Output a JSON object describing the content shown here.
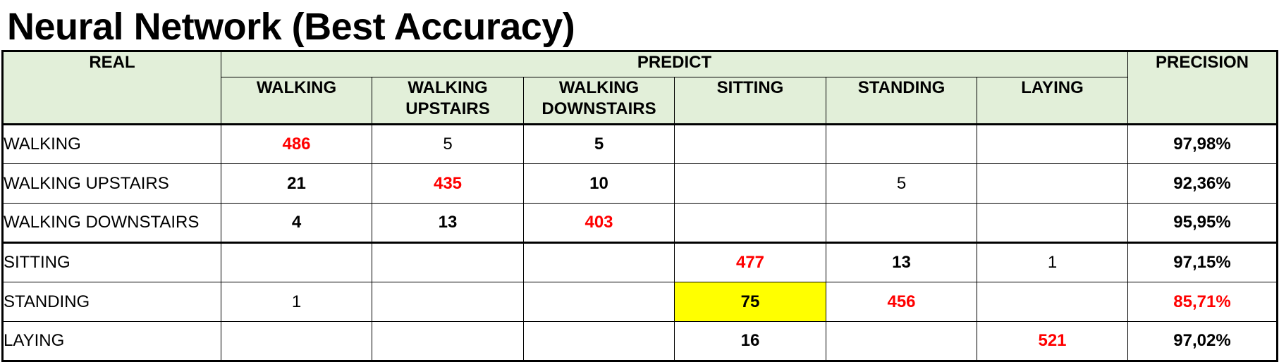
{
  "title": "Neural Network (Best Accuracy)",
  "header": {
    "real": "REAL",
    "predict": "PREDICT",
    "precision": "PRECISION",
    "columns": [
      [
        "WALKING",
        ""
      ],
      [
        "WALKING",
        "UPSTAIRS"
      ],
      [
        "WALKING",
        "DOWNSTAIRS"
      ],
      [
        "SITTING",
        ""
      ],
      [
        "STANDING",
        ""
      ],
      [
        "LAYING",
        ""
      ]
    ]
  },
  "rows": [
    {
      "label": "WALKING",
      "cells": [
        "486",
        "5",
        "5",
        "",
        "",
        ""
      ],
      "precision": "97,98%"
    },
    {
      "label": "WALKING UPSTAIRS",
      "cells": [
        "21",
        "435",
        "10",
        "",
        "5",
        ""
      ],
      "precision": "92,36%"
    },
    {
      "label": "WALKING DOWNSTAIRS",
      "cells": [
        "4",
        "13",
        "403",
        "",
        "",
        ""
      ],
      "precision": "95,95%"
    },
    {
      "label": "SITTING",
      "cells": [
        "",
        "",
        "",
        "477",
        "13",
        "1"
      ],
      "precision": "97,15%"
    },
    {
      "label": "STANDING",
      "cells": [
        "1",
        "",
        "",
        "75",
        "456",
        ""
      ],
      "precision": "85,71%"
    },
    {
      "label": "LAYING",
      "cells": [
        "",
        "",
        "",
        "16",
        "",
        "521"
      ],
      "precision": "97,02%"
    }
  ],
  "colors": {
    "header_bg": "#e2efd9",
    "highlight": "#ffff00",
    "emphasis": "#ff0000"
  }
}
